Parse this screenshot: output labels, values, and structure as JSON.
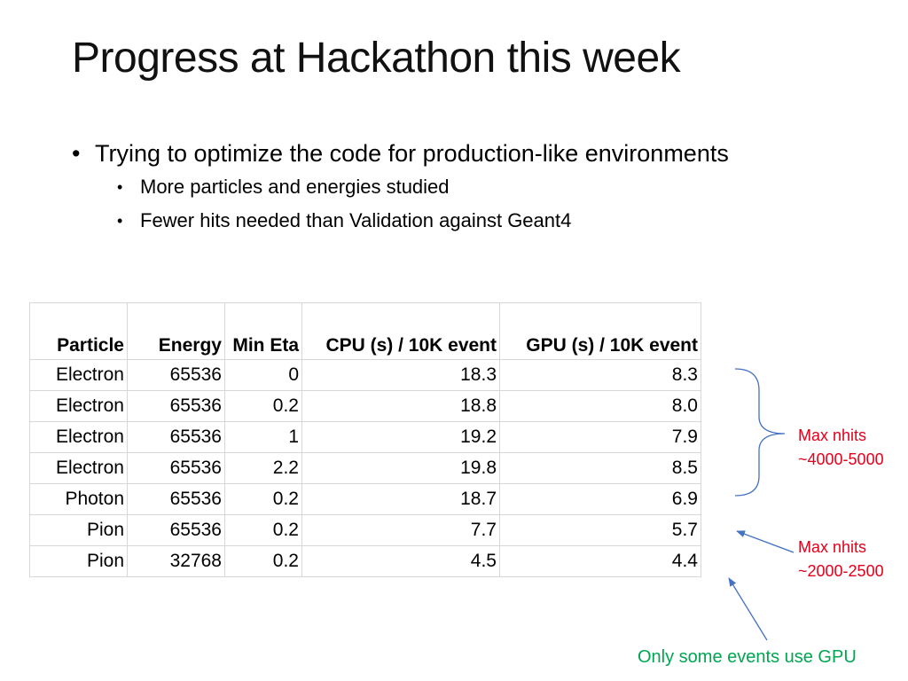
{
  "slide": {
    "title": "Progress at Hackathon this week",
    "bullets": {
      "main": "Trying to optimize the code for production-like environments",
      "sub": [
        "More particles and energies studied",
        "Fewer hits needed than Validation against Geant4"
      ],
      "bullet_glyph": "•"
    }
  },
  "table": {
    "headers": [
      "Particle",
      "Energy",
      "Min Eta",
      "CPU (s) / 10K event",
      "GPU (s) / 10K event"
    ],
    "rows": [
      [
        "Electron",
        "65536",
        "0",
        "18.3",
        "8.3"
      ],
      [
        "Electron",
        "65536",
        "0.2",
        "18.8",
        "8.0"
      ],
      [
        "Electron",
        "65536",
        "1",
        "19.2",
        "7.9"
      ],
      [
        "Electron",
        "65536",
        "2.2",
        "19.8",
        "8.5"
      ],
      [
        "Photon",
        "65536",
        "0.2",
        "18.7",
        "6.9"
      ],
      [
        "Pion",
        "65536",
        "0.2",
        "7.7",
        "5.7"
      ],
      [
        "Pion",
        "32768",
        "0.2",
        "4.5",
        "4.4"
      ]
    ]
  },
  "annotations": {
    "electron_note": {
      "line1": "Max nhits",
      "line2": "~4000-5000"
    },
    "pion_note": {
      "line1": "Max nhits",
      "line2": "~2000-2500"
    },
    "gpu_note": "Only some events use GPU"
  },
  "colors": {
    "note_red": "#e3001b",
    "note_green": "#00a651",
    "arrow_blue": "#4472c4",
    "grid": "#d7d7d7"
  }
}
